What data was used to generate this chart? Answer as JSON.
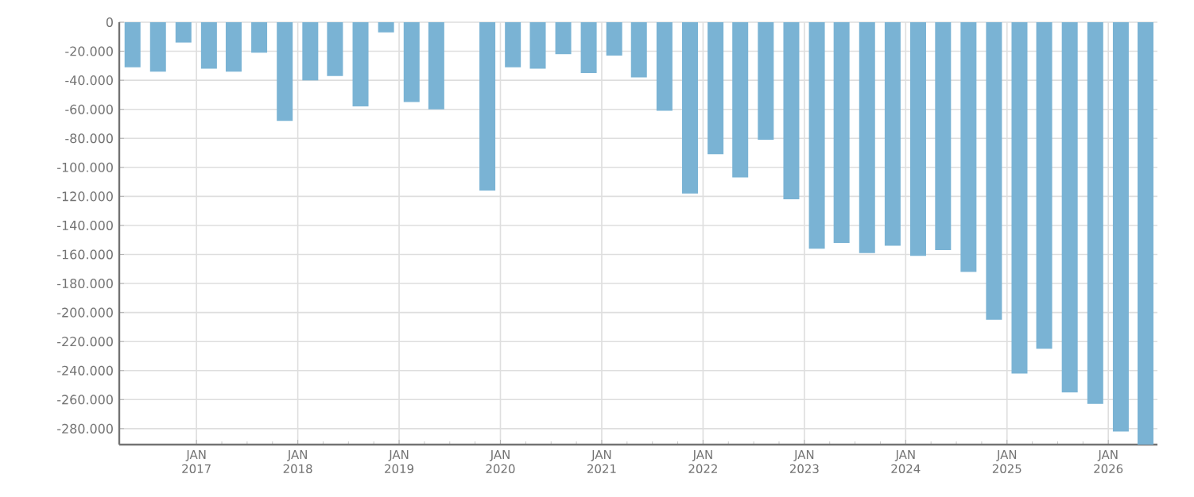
{
  "chart_data": {
    "type": "bar",
    "color": "#7ab3d4",
    "grid": true,
    "x": [
      "2016-05-15",
      "2016-08-15",
      "2016-11-15",
      "2017-02-15",
      "2017-05-15",
      "2017-08-15",
      "2017-11-15",
      "2018-02-15",
      "2018-05-15",
      "2018-08-15",
      "2018-11-15",
      "2019-02-15",
      "2019-05-15",
      "2019-08-15",
      "2019-11-15",
      "2020-02-15",
      "2020-05-15",
      "2020-08-15",
      "2020-11-15",
      "2021-02-15",
      "2021-05-15",
      "2021-08-15",
      "2021-11-15",
      "2022-02-15",
      "2022-05-15",
      "2022-08-15",
      "2022-11-15",
      "2023-02-15",
      "2023-05-15",
      "2023-08-15",
      "2023-11-15",
      "2024-02-15",
      "2024-05-15",
      "2024-08-15",
      "2024-11-15",
      "2025-02-15",
      "2025-05-15",
      "2025-08-15",
      "2025-11-15",
      "2026-02-15",
      "2026-05-15"
    ],
    "values": [
      -31000,
      -34000,
      -14000,
      -32000,
      -34000,
      -21000,
      -68000,
      -40000,
      -37000,
      -58000,
      -7000,
      -55000,
      -60000,
      null,
      -116000,
      -31000,
      -32000,
      -22000,
      -35000,
      -23000,
      -38000,
      -61000,
      -118000,
      -91000,
      -107000,
      -81000,
      -122000,
      -156000,
      -152000,
      -159000,
      -154000,
      -161000,
      -157000,
      -172000,
      -205000,
      -242000,
      -225000,
      -255000,
      -263000,
      -282000,
      -291000
    ],
    "xlim": [
      "2016-03-28",
      "2026-06-27"
    ],
    "xticks": [
      {
        "value": "2017-01-01",
        "label": "JAN 2017"
      },
      {
        "value": "2018-01-01",
        "label": "JAN 2018"
      },
      {
        "value": "2019-01-01",
        "label": "JAN 2019"
      },
      {
        "value": "2020-01-01",
        "label": "JAN 2020"
      },
      {
        "value": "2021-01-01",
        "label": "JAN 2021"
      },
      {
        "value": "2022-01-01",
        "label": "JAN 2022"
      },
      {
        "value": "2023-01-01",
        "label": "JAN 2023"
      },
      {
        "value": "2024-01-01",
        "label": "JAN 2024"
      },
      {
        "value": "2025-01-01",
        "label": "JAN 2025"
      },
      {
        "value": "2026-01-01",
        "label": "JAN 2026"
      }
    ],
    "ylim": [
      -291000,
      0
    ],
    "yticks": [
      0,
      {
        "value": -20000,
        "label": "-20.000"
      },
      {
        "value": -40000,
        "label": "-40.000"
      },
      {
        "value": -60000,
        "label": "-60.000"
      },
      {
        "value": -80000,
        "label": "-80.000"
      },
      {
        "value": -100000,
        "label": "-100.000"
      },
      {
        "value": -120000,
        "label": "-120.000"
      },
      {
        "value": -140000,
        "label": "-140.000"
      },
      {
        "value": -160000,
        "label": "-160.000"
      },
      {
        "value": -180000,
        "label": "-180.000"
      },
      {
        "value": -200000,
        "label": "-200.000"
      },
      {
        "value": -220000,
        "label": "-220.000"
      },
      {
        "value": -240000,
        "label": "-240.000"
      },
      {
        "value": -260000,
        "label": "-260.000"
      },
      {
        "value": -280000,
        "label": "-280.000"
      }
    ]
  }
}
